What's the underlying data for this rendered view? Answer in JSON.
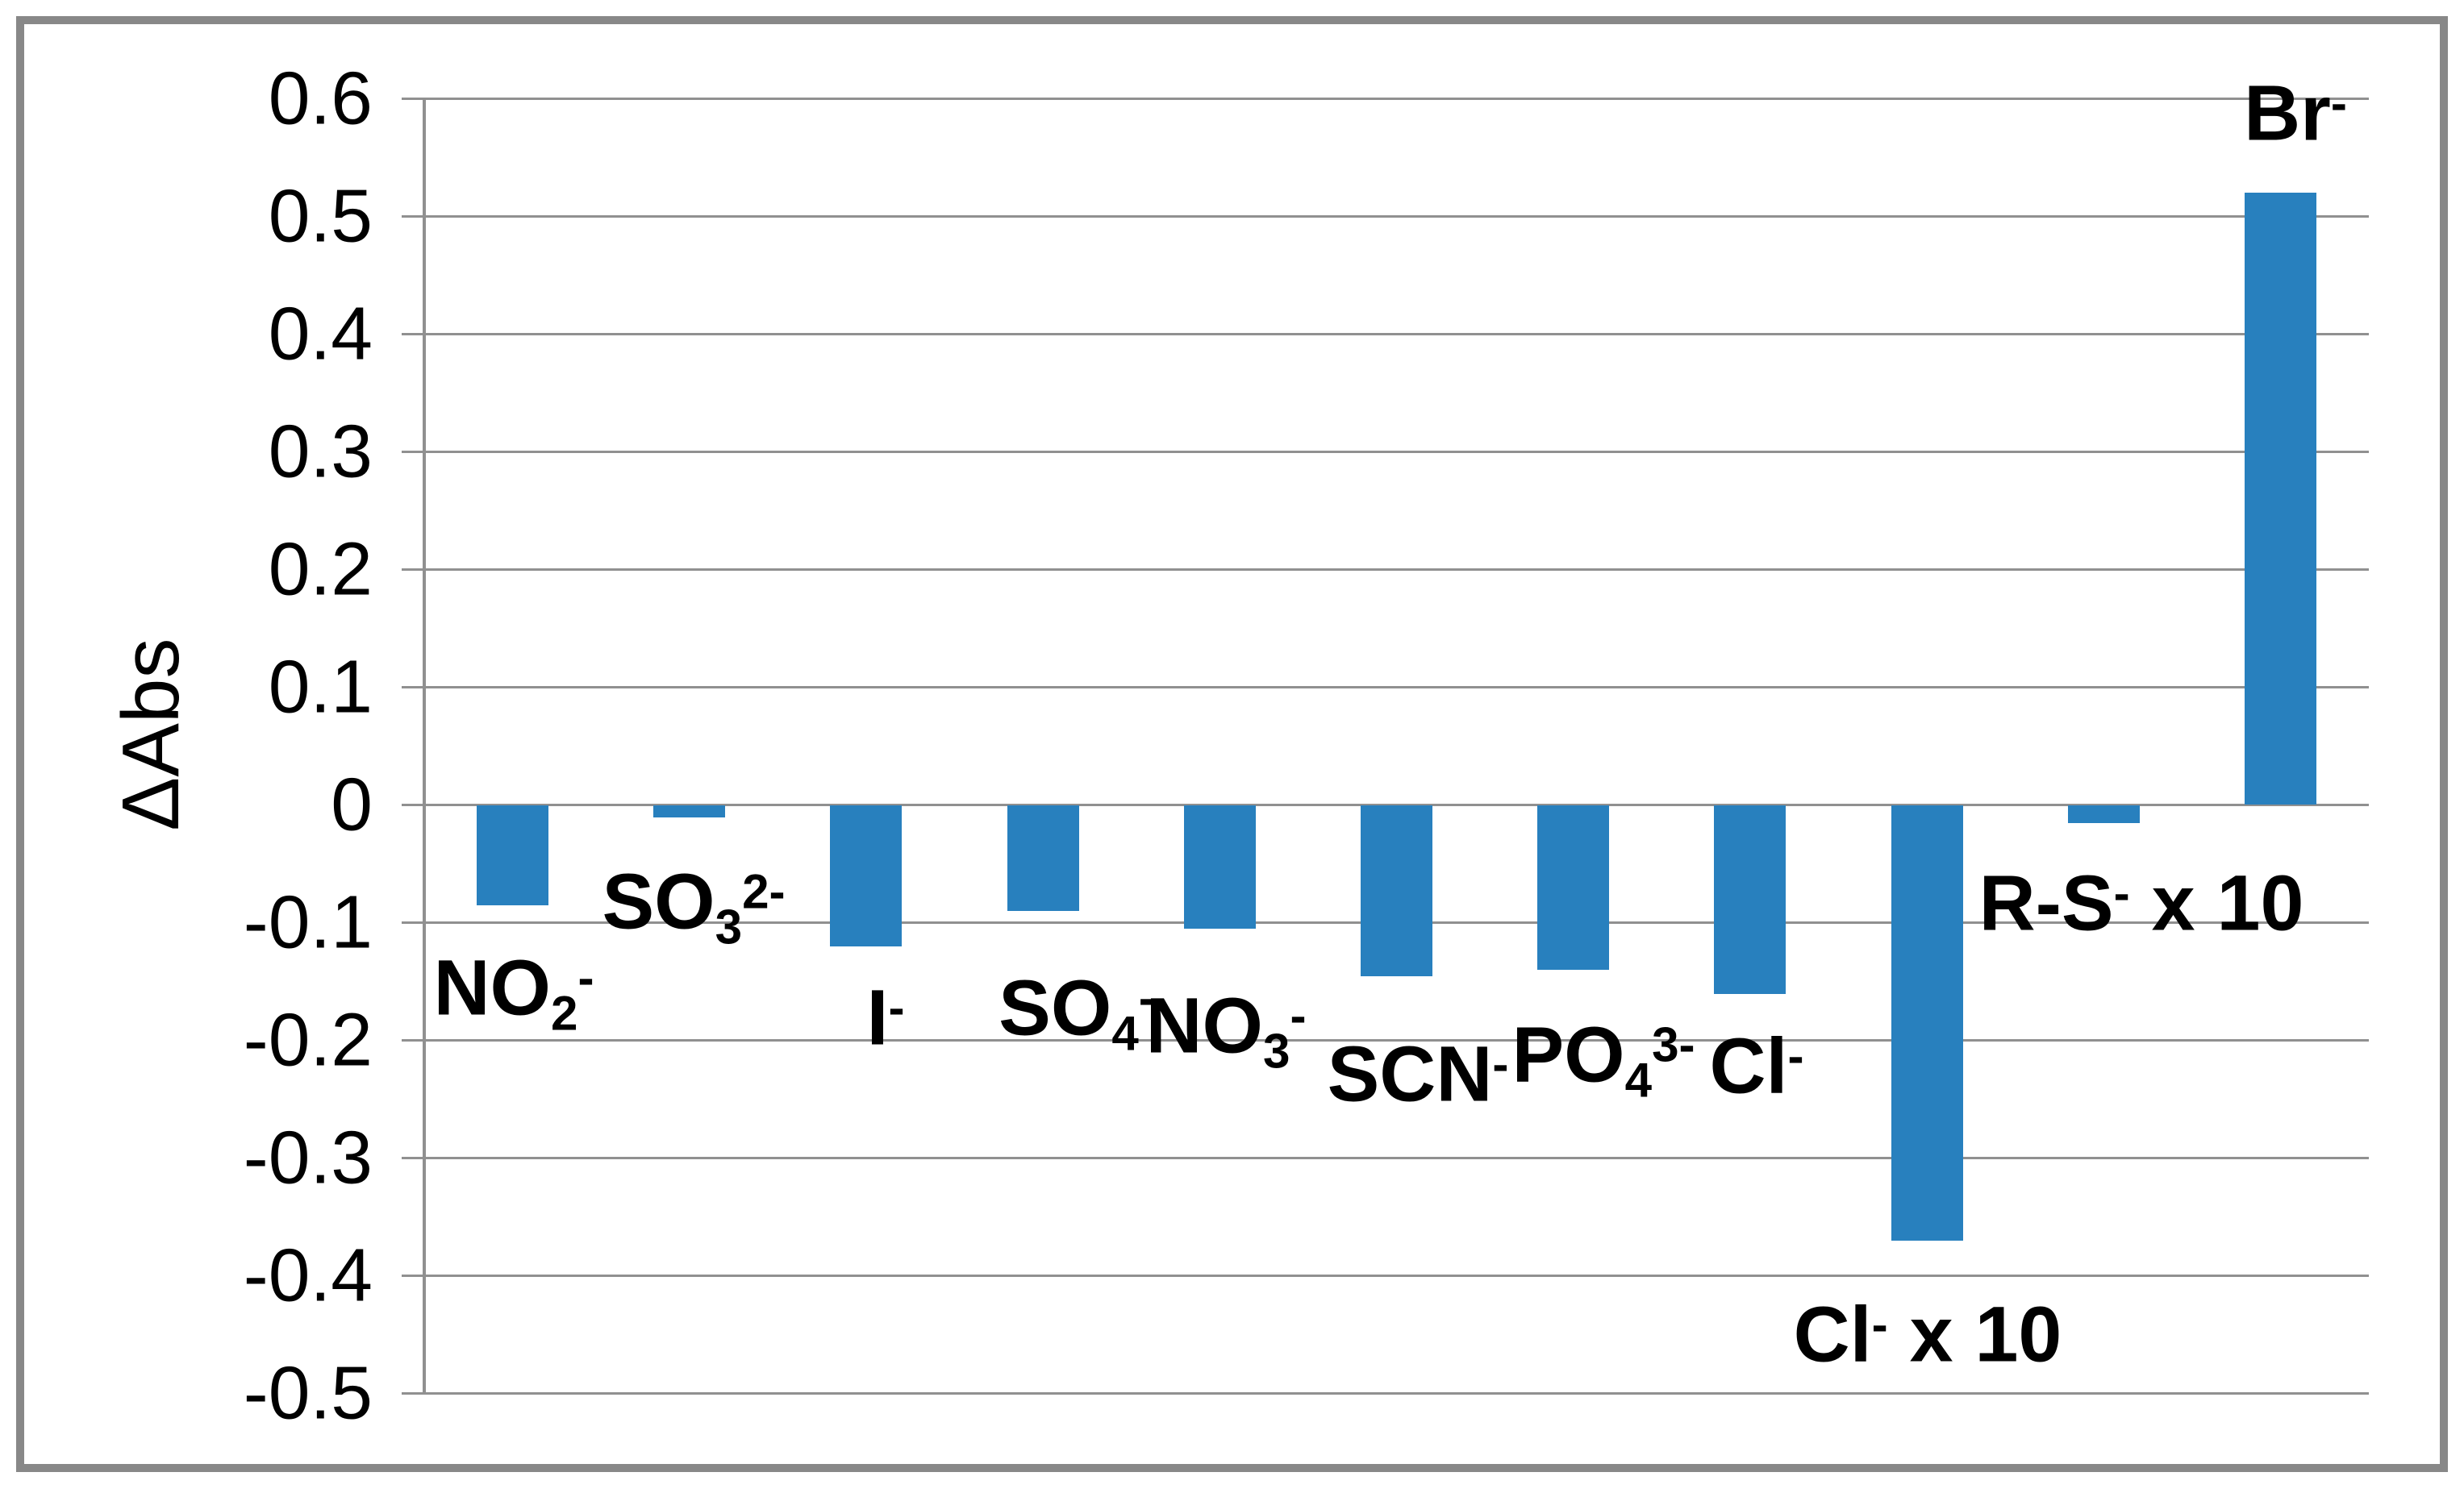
{
  "figure": {
    "background_color": "#ffffff",
    "frame_color": "#888888",
    "grid_color": "#909090",
    "text_color": "#000000"
  },
  "chart_data": {
    "type": "bar",
    "title": "",
    "xlabel": "",
    "ylabel": "ΔAbs",
    "ylim": [
      -0.5,
      0.6
    ],
    "ytick_step": 0.1,
    "grid": true,
    "legend": "none",
    "bar_color": "#2880BE",
    "ytick_labels": [
      "0.6",
      "0.5",
      "0.4",
      "0.3",
      "0.2",
      "0.1",
      "0",
      "-0.1",
      "-0.2",
      "-0.3",
      "-0.4",
      "-0.5"
    ],
    "categories": [
      "NO2-",
      "SO3 2-",
      "I-",
      "SO4 -",
      "NO3 -",
      "SCN-",
      "PO4 3-",
      "Cl-",
      "Cl- x 10",
      "R-S- x 10",
      "Br-"
    ],
    "categories_rich": [
      {
        "base": "NO",
        "sub": "2",
        "sup": "-",
        "suffix": ""
      },
      {
        "base": "SO",
        "sub": "3",
        "sup": "2-",
        "suffix": ""
      },
      {
        "base": "I",
        "sub": "",
        "sup": "-",
        "suffix": ""
      },
      {
        "base": "SO",
        "sub": "4",
        "sup": "-",
        "suffix": ""
      },
      {
        "base": "NO",
        "sub": "3",
        "sup": "-",
        "suffix": ""
      },
      {
        "base": "SCN",
        "sub": "",
        "sup": "-",
        "suffix": ""
      },
      {
        "base": "PO",
        "sub": "4",
        "sup": "3-",
        "suffix": ""
      },
      {
        "base": "Cl",
        "sub": "",
        "sup": "-",
        "suffix": ""
      },
      {
        "base": "Cl",
        "sub": "",
        "sup": "-",
        "suffix": " x 10"
      },
      {
        "base": "R-S",
        "sub": "",
        "sup": "-",
        "suffix": " x 10"
      },
      {
        "base": "Br",
        "sub": "",
        "sup": "-",
        "suffix": ""
      }
    ],
    "series": [
      {
        "name": "ΔAbs",
        "values": [
          -0.085,
          -0.01,
          -0.12,
          -0.09,
          -0.105,
          -0.145,
          -0.14,
          -0.16,
          -0.37,
          -0.015,
          0.52
        ]
      }
    ]
  }
}
